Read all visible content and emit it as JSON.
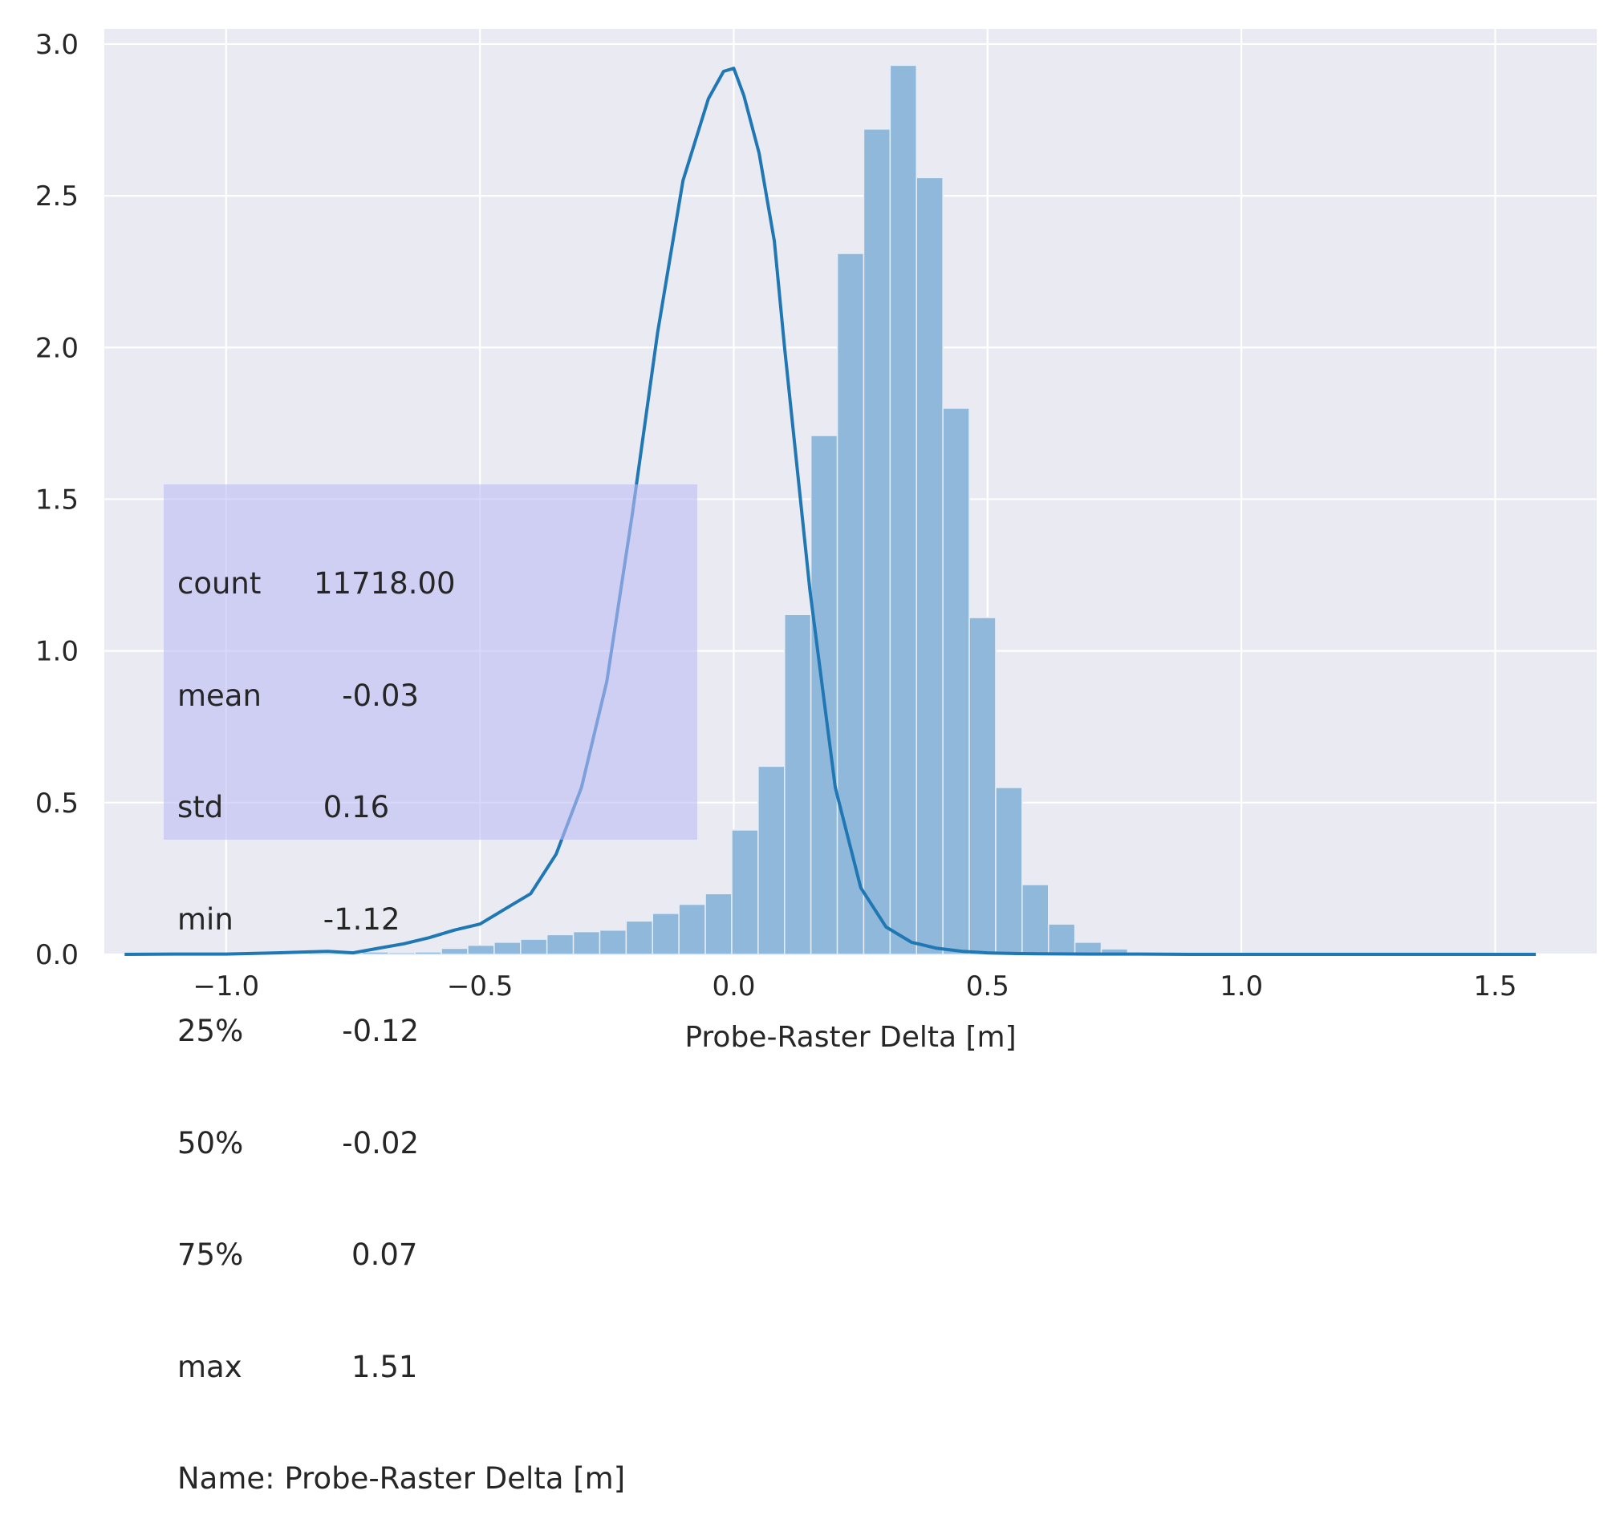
{
  "chart_data": {
    "type": "histogram",
    "xlabel": "Probe-Raster Delta [m]",
    "ylabel": "",
    "xlim": [
      -1.24,
      1.7
    ],
    "ylim": [
      0,
      3.05
    ],
    "xticks": [
      -1.0,
      -0.5,
      0.0,
      0.5,
      1.0,
      1.5
    ],
    "xtick_labels": [
      "−1.0",
      "−0.5",
      "0.0",
      "0.5",
      "1.0",
      "1.5"
    ],
    "yticks": [
      0.0,
      0.5,
      1.0,
      1.5,
      2.0,
      2.5,
      3.0
    ],
    "ytick_labels": [
      "0.0",
      "0.5",
      "1.0",
      "1.5",
      "2.0",
      "2.5",
      "3.0"
    ],
    "grid": true,
    "bins": {
      "start": -1.2,
      "width": 0.052,
      "heights": [
        0,
        0,
        0,
        0.002,
        0,
        0,
        0,
        0.003,
        0.004,
        0.008,
        0.006,
        0.008,
        0.02,
        0.03,
        0.04,
        0.05,
        0.065,
        0.075,
        0.08,
        0.11,
        0.135,
        0.165,
        0.2,
        0.41,
        0.62,
        1.12,
        1.71,
        2.31,
        2.72,
        2.93,
        2.56,
        1.8,
        1.11,
        0.55,
        0.23,
        0.1,
        0.04,
        0.018,
        0.007,
        0.003,
        0.002,
        0.002,
        0.001,
        0.001,
        0,
        0,
        0,
        0,
        0,
        0,
        0,
        0,
        0.001
      ]
    },
    "kde": {
      "x": [
        -1.2,
        -1.1,
        -1.0,
        -0.9,
        -0.8,
        -0.75,
        -0.7,
        -0.65,
        -0.6,
        -0.55,
        -0.5,
        -0.45,
        -0.4,
        -0.35,
        -0.3,
        -0.25,
        -0.2,
        -0.15,
        -0.1,
        -0.05,
        -0.02,
        0.0,
        0.02,
        0.05,
        0.08,
        0.1,
        0.15,
        0.2,
        0.25,
        0.3,
        0.35,
        0.4,
        0.45,
        0.5,
        0.55,
        0.6,
        0.7,
        0.8,
        0.9,
        1.0,
        1.1,
        1.2,
        1.3,
        1.4,
        1.5,
        1.58
      ],
      "y": [
        0.0,
        0.001,
        0.001,
        0.005,
        0.01,
        0.005,
        0.02,
        0.035,
        0.055,
        0.08,
        0.1,
        0.15,
        0.2,
        0.33,
        0.55,
        0.9,
        1.45,
        2.05,
        2.55,
        2.82,
        2.91,
        2.92,
        2.83,
        2.64,
        2.35,
        2.0,
        1.2,
        0.55,
        0.22,
        0.09,
        0.04,
        0.02,
        0.01,
        0.005,
        0.003,
        0.002,
        0.001,
        0.001,
        0.0,
        0.0,
        0.0,
        0.0,
        0.0,
        0.0,
        0.0,
        0.0
      ]
    },
    "colors": {
      "background": "#eaeaf2",
      "grid": "#ffffff",
      "bar": "#90b8da",
      "kde": "#1f77b4",
      "stats_box": "#bcbcf5"
    }
  },
  "stats_box": {
    "lines": [
      {
        "key": "count",
        "value": "11718.00"
      },
      {
        "key": "mean",
        "value": "   -0.03"
      },
      {
        "key": "std",
        "value": " 0.16"
      },
      {
        "key": "min",
        "value": " -1.12"
      },
      {
        "key": "25%",
        "value": "   -0.12"
      },
      {
        "key": "50%",
        "value": "   -0.02"
      },
      {
        "key": "75%",
        "value": "    0.07"
      },
      {
        "key": "max",
        "value": "    1.51"
      }
    ],
    "footer": "Name: Probe-Raster Delta [m]"
  }
}
